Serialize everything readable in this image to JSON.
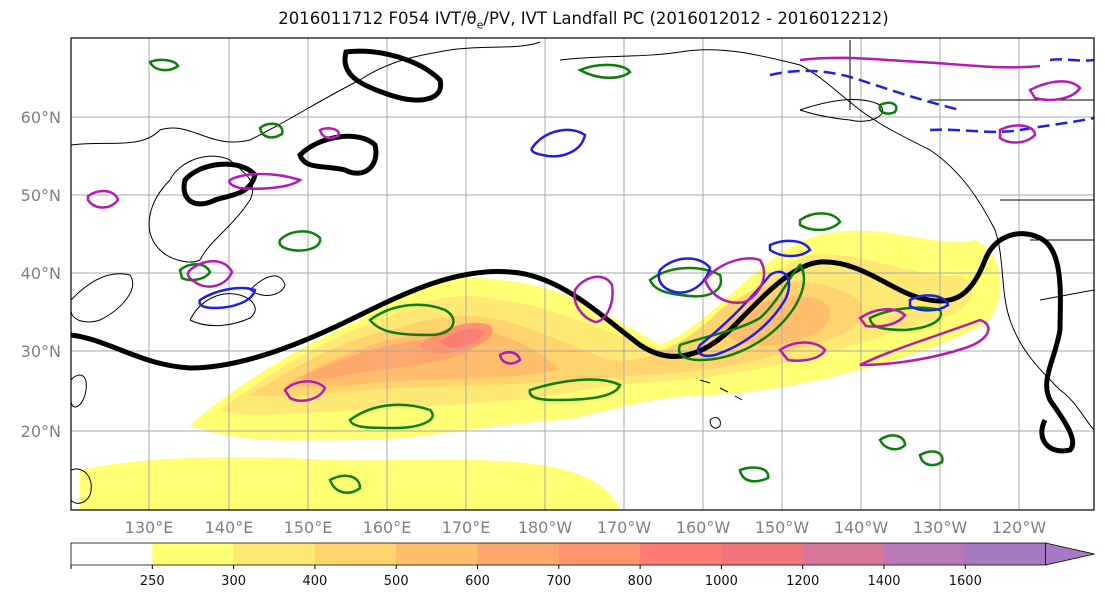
{
  "title": {
    "prefix": "2016011712 F054 IVT/",
    "theta": "θ",
    "theta_sub": "e",
    "suffix": "/PV, IVT Landfall PC (2016012012 - 2016012212)"
  },
  "map": {
    "lat_labels": [
      "60°N",
      "50°N",
      "40°N",
      "30°N",
      "20°N"
    ],
    "lon_labels": [
      "130°E",
      "140°E",
      "150°E",
      "160°E",
      "170°E",
      "180°W",
      "170°W",
      "160°W",
      "150°W",
      "140°W",
      "130°W",
      "120°W"
    ],
    "grid": true,
    "projection": "equidistant cylindrical",
    "field": "IVT (shaded)",
    "contour_colors": {
      "black": "#000000",
      "green": "#0a7f0a",
      "blue": "#1f1fe6",
      "magenta": "#b41ab4"
    }
  },
  "colorbar": {
    "ticks": [
      "250",
      "300",
      "400",
      "500",
      "600",
      "700",
      "800",
      "1000",
      "1200",
      "1400",
      "1600"
    ],
    "colors": [
      "#ffffff",
      "#ffff73",
      "#ffe873",
      "#ffd36e",
      "#ffbe6c",
      "#ffa86e",
      "#ff936e",
      "#ff7c74",
      "#f0747a",
      "#d8769a",
      "#b878b8",
      "#a57ac3"
    ],
    "extend": "max"
  }
}
